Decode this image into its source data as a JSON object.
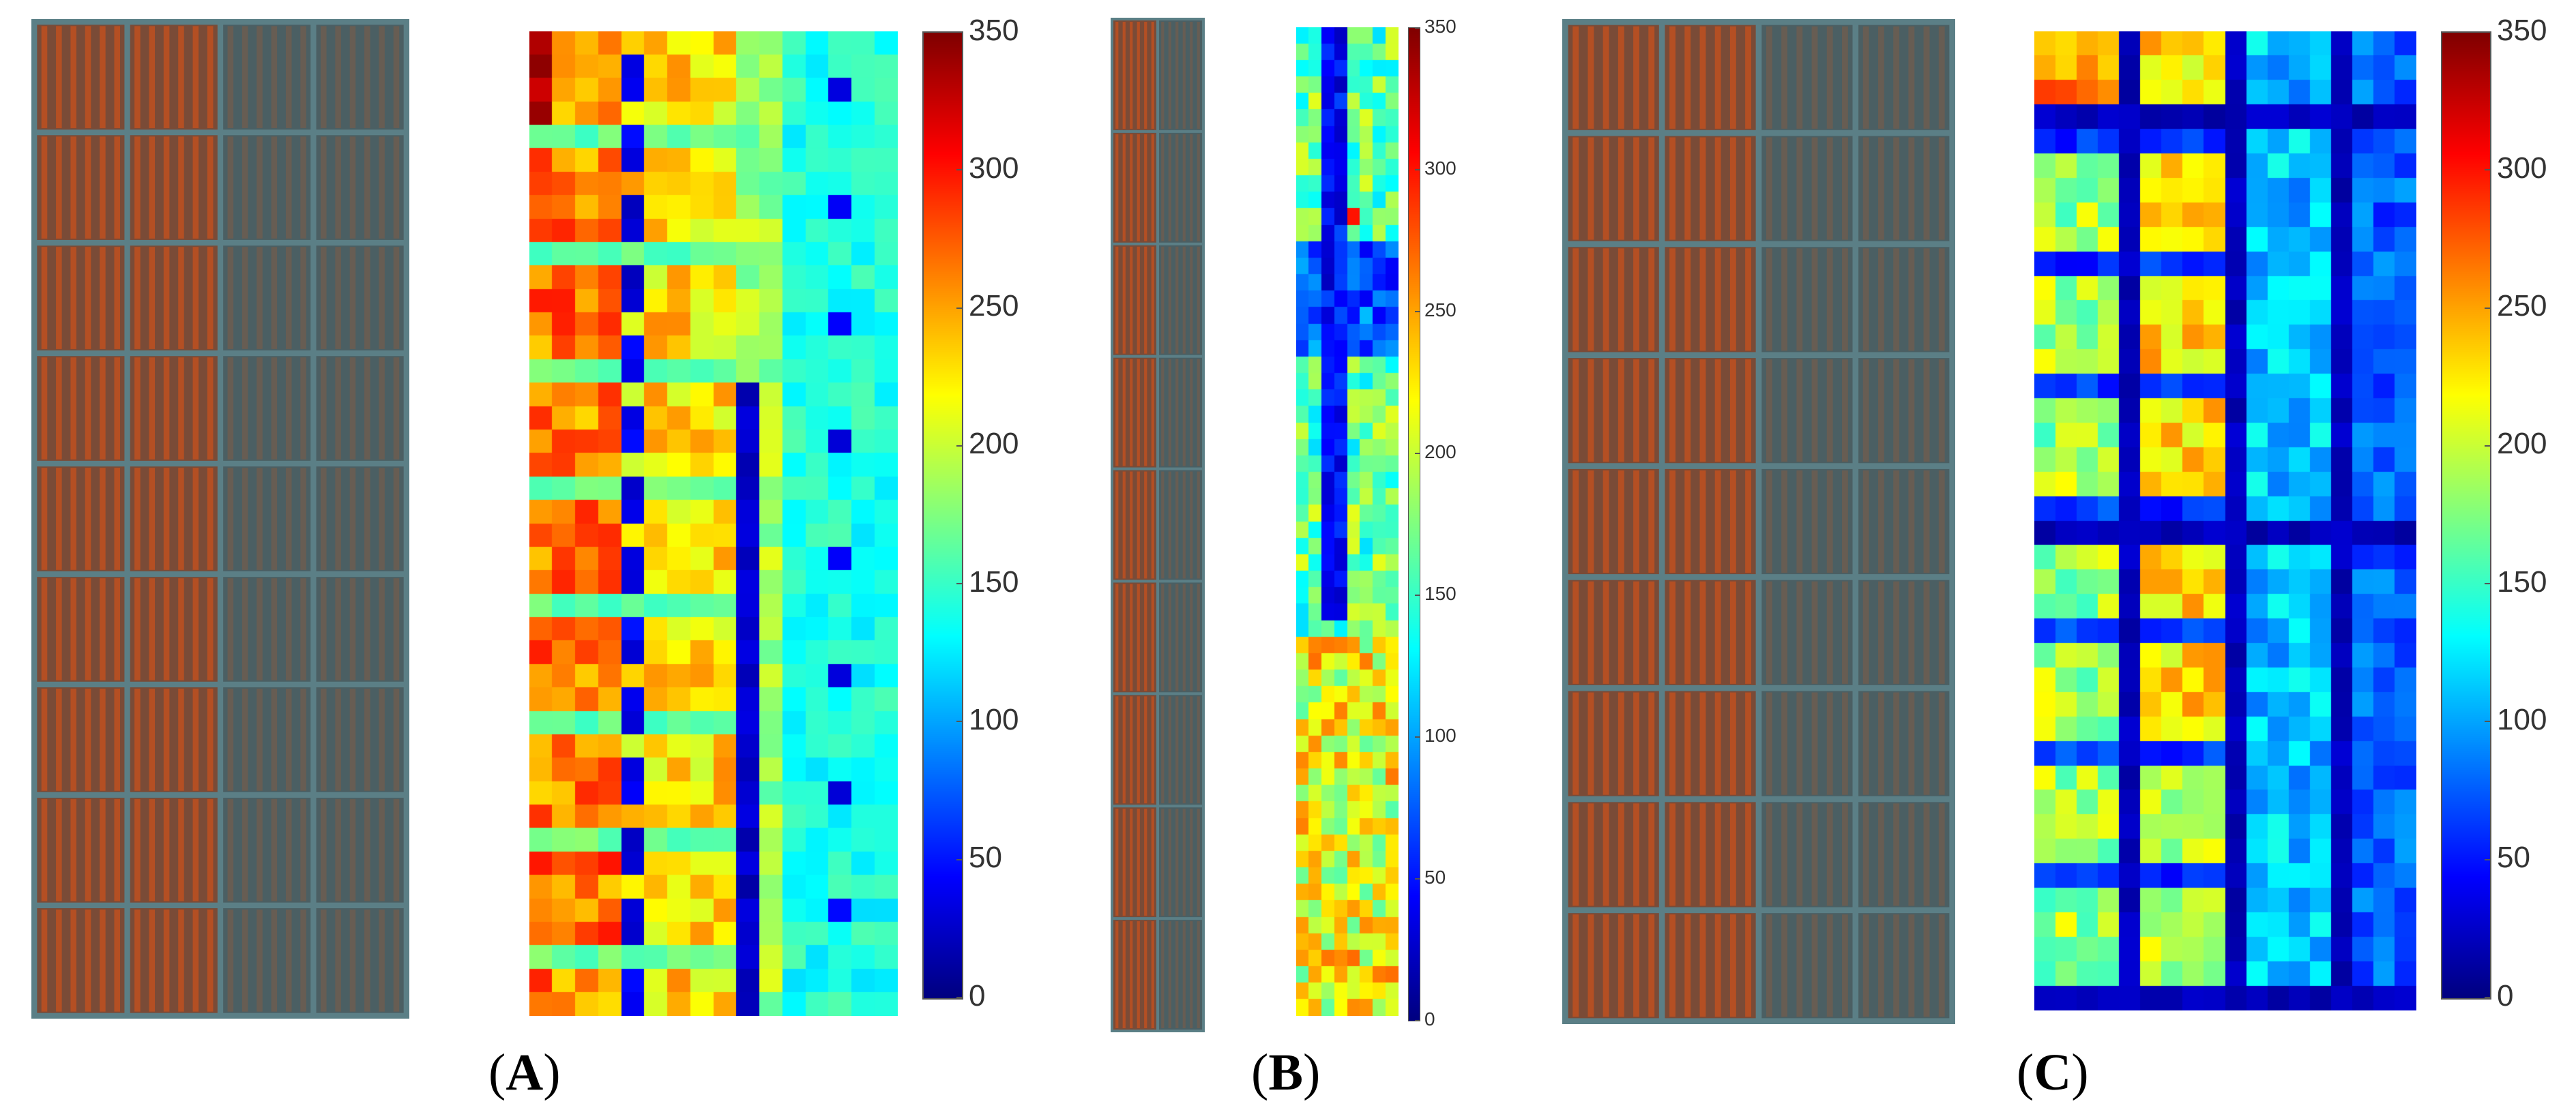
{
  "figure": {
    "panels": [
      {
        "id": "A",
        "label_letter": "A",
        "photo": {
          "description_icon": "aerial-field-photo-icon",
          "blocks_cols": 4,
          "blocks_rows": 9
        },
        "heatmap": {
          "cols": 16,
          "rows": 42
        },
        "colorbar": {
          "min": 0,
          "max": 350,
          "ticks": [
            "350",
            "300",
            "250",
            "200",
            "150",
            "100",
            "50",
            "0"
          ]
        }
      },
      {
        "id": "B",
        "label_letter": "B",
        "photo": {
          "description_icon": "aerial-field-photo-icon",
          "blocks_cols": 2,
          "blocks_rows": 9
        },
        "heatmap": {
          "cols": 8,
          "rows": 60
        },
        "colorbar": {
          "min": 0,
          "max": 350,
          "ticks": [
            "350",
            "300",
            "250",
            "200",
            "150",
            "100",
            "50",
            "0"
          ]
        }
      },
      {
        "id": "C",
        "label_letter": "C",
        "photo": {
          "description_icon": "aerial-field-photo-icon",
          "blocks_cols": 4,
          "blocks_rows": 9
        },
        "heatmap": {
          "cols": 18,
          "rows": 40
        },
        "colorbar": {
          "min": 0,
          "max": 350,
          "ticks": [
            "350",
            "300",
            "250",
            "200",
            "150",
            "100",
            "50",
            "0"
          ]
        }
      }
    ],
    "colormap": "jet"
  }
}
